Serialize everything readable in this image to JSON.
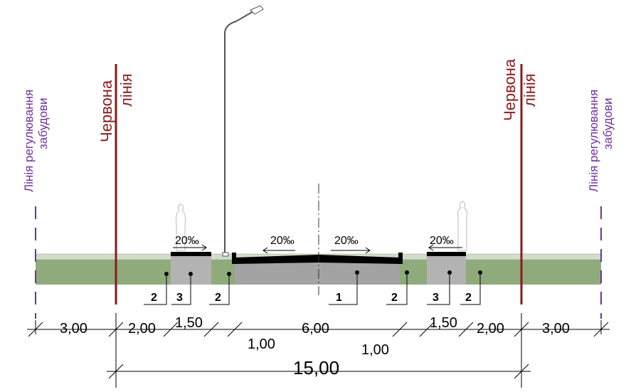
{
  "left_regulation_line": {
    "line1": "Лінія регулювання",
    "line2": "забудови"
  },
  "left_red_line": {
    "line1": "Червона",
    "line2": "лінія"
  },
  "right_red_line": {
    "line1": "Червона",
    "line2": "лінія"
  },
  "right_regulation_line": {
    "line1": "Лінія регулювання",
    "line2": "забудови"
  },
  "slopes": [
    "20‰",
    "20‰",
    "20‰",
    "20‰"
  ],
  "layer_labels": [
    "2",
    "3",
    "2",
    "1",
    "2",
    "3",
    "2"
  ],
  "dimensions": [
    "3,00",
    "2,00",
    "1,50",
    "6,00",
    "1,00",
    "1,00",
    "1,50",
    "2,00",
    "3,00"
  ],
  "total_width": "15,00"
}
